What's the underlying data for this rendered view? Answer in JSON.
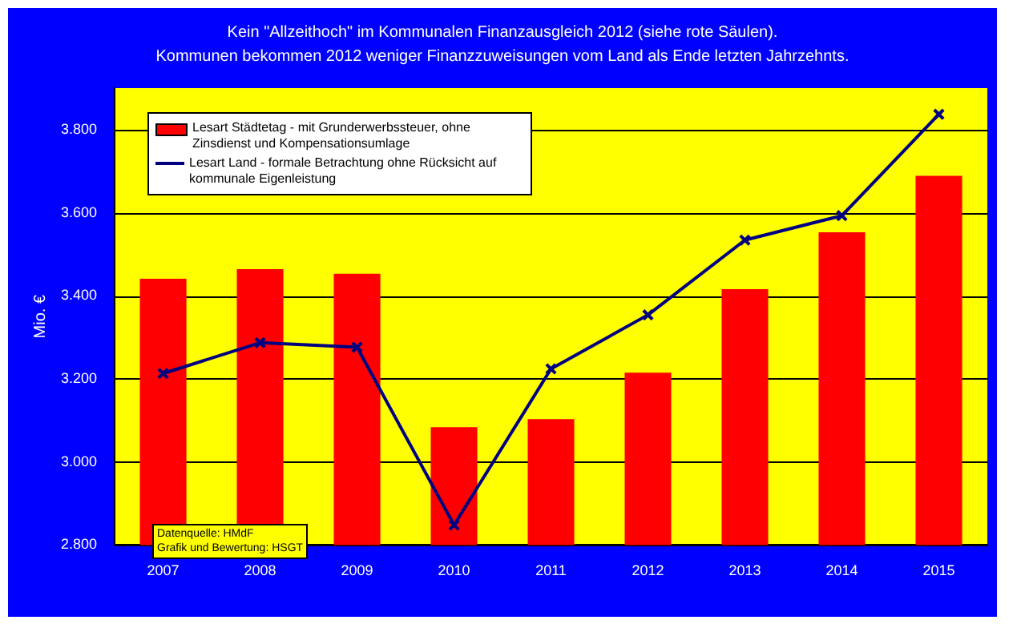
{
  "chart_data": {
    "type": "bar",
    "title": "Kein \"Allzeithoch\" im Kommunalen Finanzausgleich 2012 (siehe rote Säulen).",
    "subtitle": "Kommunen bekommen 2012 weniger Finanzzuweisungen vom Land als Ende letzten Jahrzehnts.",
    "ylabel": "Mio. €",
    "categories": [
      "2007",
      "2008",
      "2009",
      "2010",
      "2011",
      "2012",
      "2013",
      "2014",
      "2015"
    ],
    "series": [
      {
        "name": "Lesart Städtetag - mit Grunderwerbssteuer, ohne Zinsdienst und Kompensationsumlage",
        "color": "#ff0000",
        "values": [
          3441,
          3464,
          3453,
          3084,
          3103,
          3215,
          3416,
          3553,
          3689
        ]
      },
      {
        "name": "Lesart Land - formale Betrachtung ohne Rücksicht auf kommunale Eigenleistung",
        "type": "line",
        "color": "#000080",
        "marker": "cross",
        "values": [
          3213,
          3287,
          3276,
          2848,
          3224,
          3354,
          3534,
          3593,
          3837
        ]
      }
    ],
    "ylim": [
      2800,
      3900
    ],
    "yticks": [
      {
        "value": 2800,
        "label": "2.800"
      },
      {
        "value": 3000,
        "label": "3.000"
      },
      {
        "value": 3200,
        "label": "3.200"
      },
      {
        "value": 3400,
        "label": "3.400"
      },
      {
        "value": 3600,
        "label": "3.600"
      },
      {
        "value": 3800,
        "label": "3.800"
      }
    ],
    "grid": "y",
    "legend": "top left",
    "annotations": [
      "Datenquelle: HMdF",
      "Grafik und Bewertung: HSGT"
    ]
  }
}
